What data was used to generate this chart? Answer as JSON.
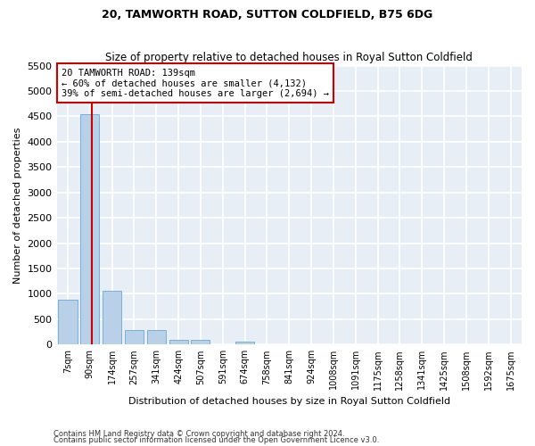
{
  "title": "20, TAMWORTH ROAD, SUTTON COLDFIELD, B75 6DG",
  "subtitle": "Size of property relative to detached houses in Royal Sutton Coldfield",
  "xlabel": "Distribution of detached houses by size in Royal Sutton Coldfield",
  "ylabel": "Number of detached properties",
  "bar_color": "#b8d0e8",
  "bar_edge_color": "#7aafd4",
  "background_color": "#e8eef5",
  "grid_color": "#ffffff",
  "annotation_box_color": "#cc0000",
  "property_line_color": "#cc0000",
  "property_sqm": 139,
  "annotation_title": "20 TAMWORTH ROAD: 139sqm",
  "annotation_line1": "← 60% of detached houses are smaller (4,132)",
  "annotation_line2": "39% of semi-detached houses are larger (2,694) →",
  "categories": [
    "7sqm",
    "90sqm",
    "174sqm",
    "257sqm",
    "341sqm",
    "424sqm",
    "507sqm",
    "591sqm",
    "674sqm",
    "758sqm",
    "841sqm",
    "924sqm",
    "1008sqm",
    "1091sqm",
    "1175sqm",
    "1258sqm",
    "1341sqm",
    "1425sqm",
    "1508sqm",
    "1592sqm",
    "1675sqm"
  ],
  "num_bins": 21,
  "bar_edges": [
    7,
    90,
    174,
    257,
    341,
    424,
    507,
    591,
    674,
    758,
    841,
    924,
    1008,
    1091,
    1175,
    1258,
    1341,
    1425,
    1508,
    1592,
    1675
  ],
  "values": [
    880,
    4550,
    1060,
    290,
    290,
    90,
    90,
    0,
    60,
    0,
    0,
    0,
    0,
    0,
    0,
    0,
    0,
    0,
    0,
    0,
    0
  ],
  "ylim": [
    0,
    5500
  ],
  "yticks": [
    0,
    500,
    1000,
    1500,
    2000,
    2500,
    3000,
    3500,
    4000,
    4500,
    5000,
    5500
  ],
  "footnote1": "Contains HM Land Registry data © Crown copyright and database right 2024.",
  "footnote2": "Contains public sector information licensed under the Open Government Licence v3.0."
}
